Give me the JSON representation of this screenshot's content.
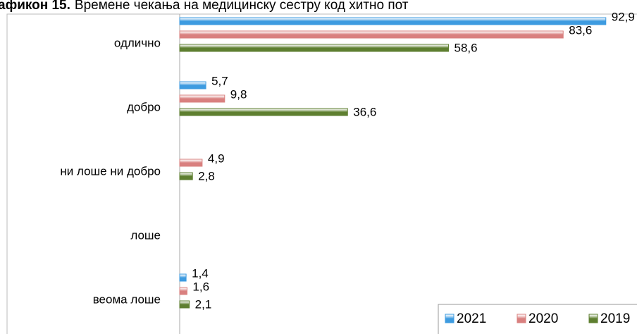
{
  "chart_data": {
    "type": "bar",
    "orientation": "horizontal",
    "title": {
      "label": "афикон 15.",
      "text": "Времене чекања на медицинску сестру код хитно пот"
    },
    "categories": [
      "одлично",
      "добро",
      "ни лоше ни добро",
      "лоше",
      "веома лоше"
    ],
    "series": [
      {
        "name": "2021",
        "color": "#3d9be0",
        "values": [
          92.9,
          5.7,
          null,
          null,
          1.4
        ],
        "value_labels": [
          "92,9",
          "5,7",
          null,
          null,
          "1,4"
        ]
      },
      {
        "name": "2020",
        "color": "#d9807f",
        "values": [
          83.6,
          9.8,
          4.9,
          null,
          1.6
        ],
        "value_labels": [
          "83,6",
          "9,8",
          "4,9",
          null,
          "1,6"
        ]
      },
      {
        "name": "2019",
        "color": "#5e7f30",
        "values": [
          58.6,
          36.6,
          2.8,
          null,
          2.1
        ],
        "value_labels": [
          "58,6",
          "36,6",
          "2,8",
          null,
          "2,1"
        ]
      }
    ],
    "xlim": [
      0,
      100
    ],
    "legend": "bottom-right"
  }
}
